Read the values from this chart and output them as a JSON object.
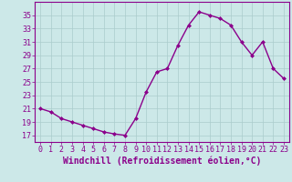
{
  "x": [
    0,
    1,
    2,
    3,
    4,
    5,
    6,
    7,
    8,
    9,
    10,
    11,
    12,
    13,
    14,
    15,
    16,
    17,
    18,
    19,
    20,
    21,
    22,
    23
  ],
  "y": [
    21.0,
    20.5,
    19.5,
    19.0,
    18.5,
    18.0,
    17.5,
    17.2,
    17.0,
    19.5,
    23.5,
    26.5,
    27.0,
    30.5,
    33.5,
    35.5,
    35.0,
    34.5,
    33.5,
    31.0,
    29.0,
    31.0,
    27.0,
    25.5
  ],
  "line_color": "#8B008B",
  "marker": "D",
  "marker_size": 2,
  "bg_color": "#cce8e8",
  "grid_color": "#aacccc",
  "xlabel": "Windchill (Refroidissement éolien,°C)",
  "xlabel_color": "#8B008B",
  "xlabel_fontsize": 7,
  "ytick_labels": [
    "17",
    "19",
    "21",
    "23",
    "25",
    "27",
    "29",
    "31",
    "33",
    "35"
  ],
  "ytick_values": [
    17,
    19,
    21,
    23,
    25,
    27,
    29,
    31,
    33,
    35
  ],
  "xtick_values": [
    0,
    1,
    2,
    3,
    4,
    5,
    6,
    7,
    8,
    9,
    10,
    11,
    12,
    13,
    14,
    15,
    16,
    17,
    18,
    19,
    20,
    21,
    22,
    23
  ],
  "xtick_labels": [
    "0",
    "1",
    "2",
    "3",
    "4",
    "5",
    "6",
    "7",
    "8",
    "9",
    "10",
    "11",
    "12",
    "13",
    "14",
    "15",
    "16",
    "17",
    "18",
    "19",
    "20",
    "21",
    "22",
    "23"
  ],
  "ylim": [
    16.0,
    37.0
  ],
  "xlim": [
    -0.5,
    23.5
  ],
  "tick_fontsize": 6,
  "tick_color": "#8B008B",
  "spine_color": "#8B008B",
  "linewidth": 1.0
}
